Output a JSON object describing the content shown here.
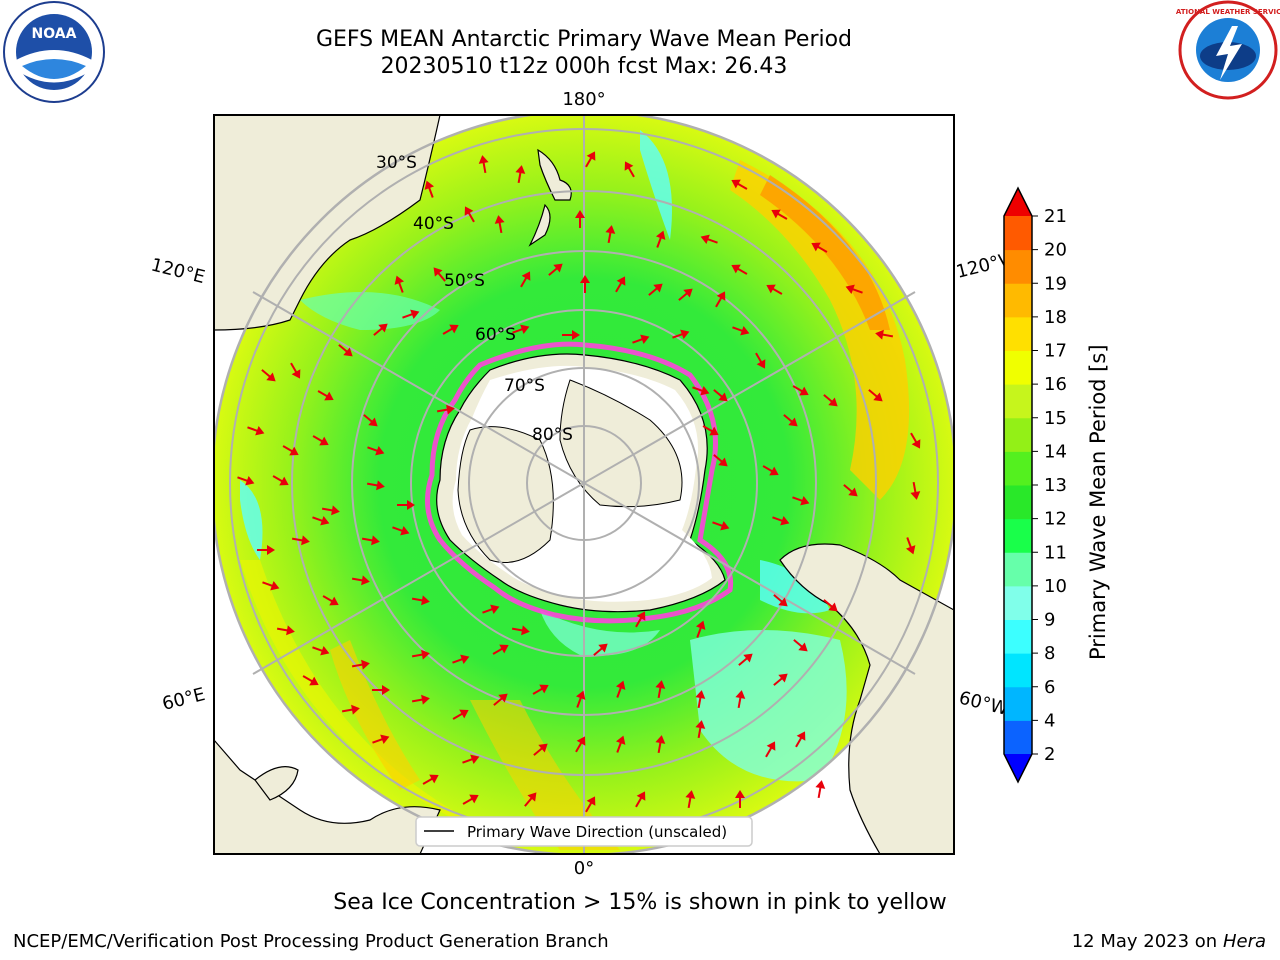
{
  "header": {
    "title_line1": "GEFS MEAN Antarctic Primary Wave Mean Period",
    "title_line2": "20230510 t12z 000h fcst   Max: 26.43"
  },
  "logos": {
    "left": "NOAA",
    "right": "NATIONAL WEATHER SERVICE"
  },
  "map": {
    "lat_labels": [
      "30°S",
      "40°S",
      "50°S",
      "60°S",
      "70°S",
      "80°S"
    ],
    "lon_labels": {
      "top": "180°",
      "bottom": "0°",
      "left_upper": "120°E",
      "left_lower": "60°E",
      "right_upper": "120°W",
      "right_lower": "60°W"
    },
    "legend_label": "Primary Wave Direction (unscaled)",
    "colors": {
      "land": "#efedd9",
      "grid": "#b0b0b0",
      "arrow": "#e8000b",
      "ice_edge": "#ff44dd"
    }
  },
  "colorbar": {
    "label": "Primary Wave Mean Period [s]",
    "ticks": [
      "2",
      "4",
      "6",
      "8",
      "9",
      "10",
      "11",
      "12",
      "13",
      "14",
      "15",
      "16",
      "17",
      "18",
      "19",
      "20",
      "21"
    ],
    "colors": [
      "#0b63ff",
      "#00b6ff",
      "#00e5ff",
      "#3cffff",
      "#80ffea",
      "#66ffaa",
      "#19ff4a",
      "#29e829",
      "#54f01f",
      "#93f017",
      "#c6f51c",
      "#f0ff00",
      "#ffe000",
      "#ffba00",
      "#ff8c00",
      "#ff5a00",
      "#ff2200"
    ],
    "under_color": "#0000ff",
    "over_color": "#ee0000"
  },
  "footer": {
    "note": "Sea Ice Concentration > 15% is shown in pink to yellow",
    "credit": "NCEP/EMC/Verification Post Processing Product Generation Branch",
    "date": "12 May 2023 on",
    "host": "Hera"
  }
}
